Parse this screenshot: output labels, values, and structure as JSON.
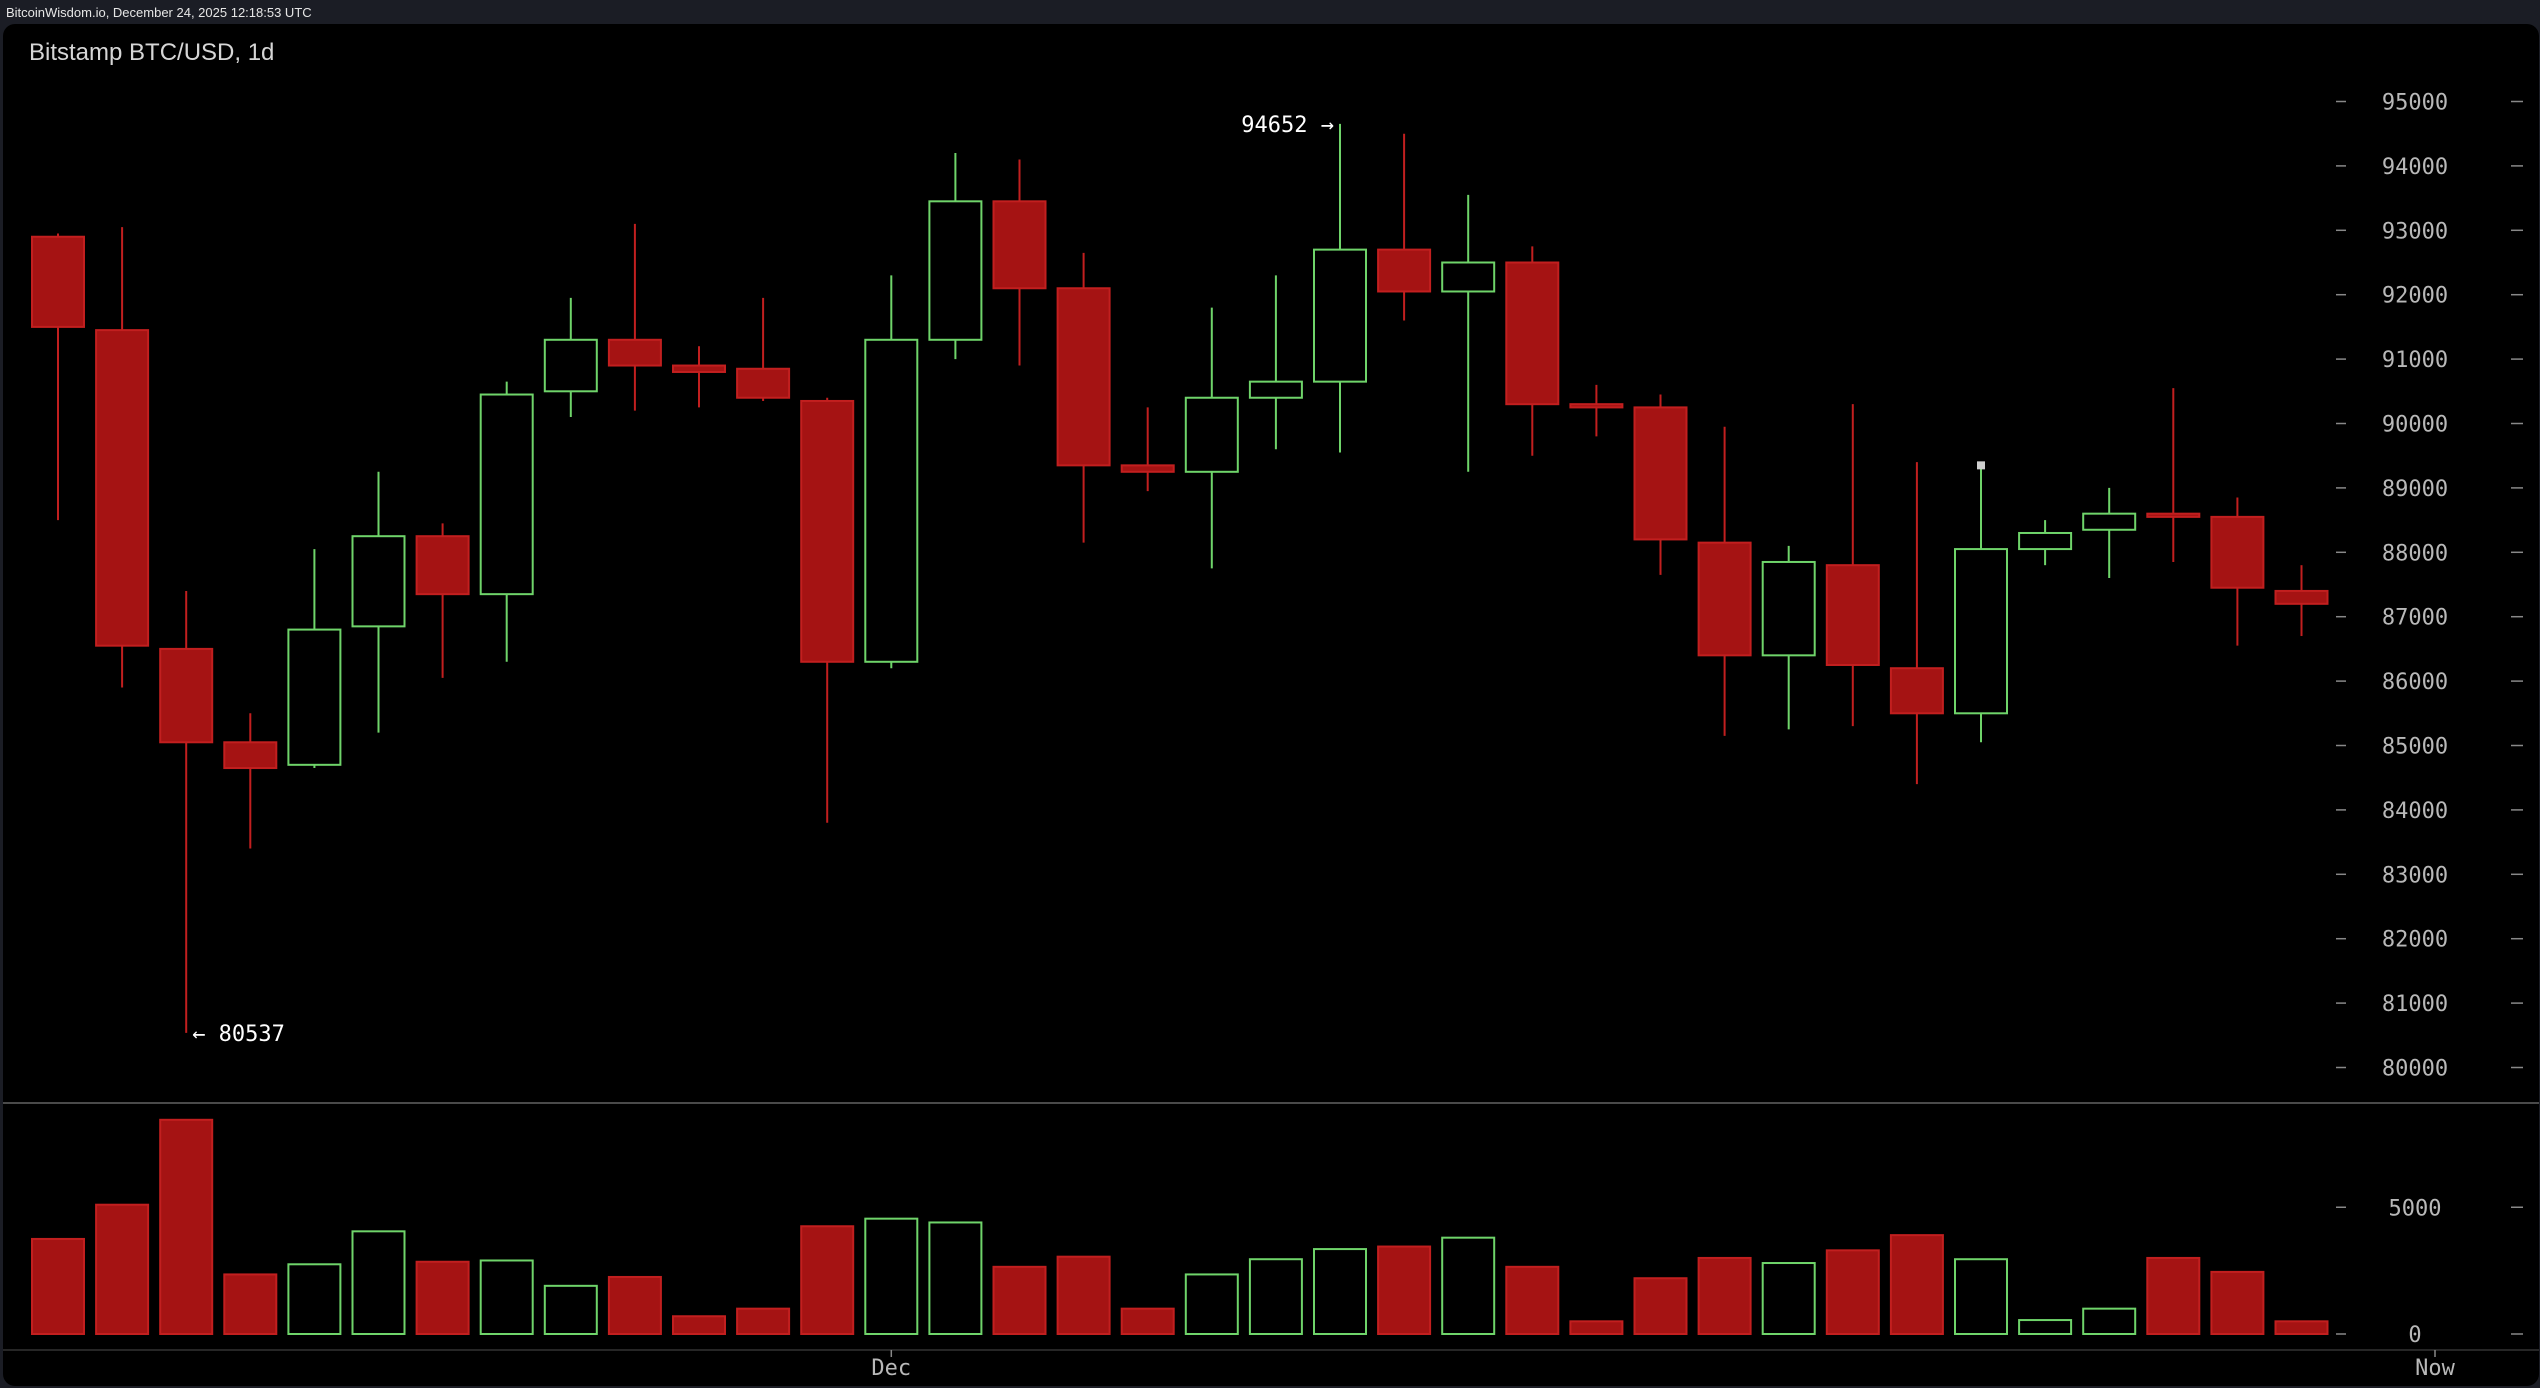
{
  "header": {
    "source_line": "BitcoinWisdom.io, December 24, 2025 12:18:53 UTC"
  },
  "chart": {
    "title": "Bitstamp BTC/USD, 1d"
  },
  "colors": {
    "up": "#6fd46a",
    "down": "#a51313",
    "down_border": "#c21f1f",
    "background": "#000000",
    "axis_text": "#b8b8b8"
  },
  "annotations": {
    "high_label": "94652 →",
    "low_label": "← 80537"
  },
  "chart_data": [
    {
      "type": "candlestick",
      "title": "Bitstamp BTC/USD, 1d",
      "y_ticks": [
        80000,
        81000,
        82000,
        83000,
        84000,
        85000,
        86000,
        87000,
        88000,
        89000,
        90000,
        91000,
        92000,
        93000,
        94000,
        95000
      ],
      "ylim": [
        79700,
        95400
      ],
      "x_ticks": [
        {
          "label": "Dec",
          "index": 13
        },
        {
          "label": "Now",
          "index": 37
        }
      ],
      "high_annotation": 94652,
      "low_annotation": 80537,
      "ohlc": [
        {
          "o": 92900,
          "h": 92950,
          "l": 88500,
          "c": 91500
        },
        {
          "o": 91450,
          "h": 93050,
          "l": 85900,
          "c": 86550
        },
        {
          "o": 86500,
          "h": 87400,
          "l": 80537,
          "c": 85050
        },
        {
          "o": 85050,
          "h": 85500,
          "l": 83400,
          "c": 84650
        },
        {
          "o": 84700,
          "h": 88050,
          "l": 84650,
          "c": 86800
        },
        {
          "o": 86850,
          "h": 89250,
          "l": 85200,
          "c": 88250
        },
        {
          "o": 88250,
          "h": 88450,
          "l": 86050,
          "c": 87350
        },
        {
          "o": 87350,
          "h": 90650,
          "l": 86300,
          "c": 90450
        },
        {
          "o": 90500,
          "h": 91950,
          "l": 90100,
          "c": 91300
        },
        {
          "o": 91300,
          "h": 93100,
          "l": 90200,
          "c": 90900
        },
        {
          "o": 90900,
          "h": 91200,
          "l": 90250,
          "c": 90800
        },
        {
          "o": 90850,
          "h": 91950,
          "l": 90350,
          "c": 90400
        },
        {
          "o": 90350,
          "h": 90400,
          "l": 83800,
          "c": 86300
        },
        {
          "o": 86300,
          "h": 92300,
          "l": 86200,
          "c": 91300
        },
        {
          "o": 91300,
          "h": 94200,
          "l": 91000,
          "c": 93450
        },
        {
          "o": 93450,
          "h": 94100,
          "l": 90900,
          "c": 92100
        },
        {
          "o": 92100,
          "h": 92650,
          "l": 88150,
          "c": 89350
        },
        {
          "o": 89350,
          "h": 90250,
          "l": 88950,
          "c": 89250
        },
        {
          "o": 89250,
          "h": 91800,
          "l": 87750,
          "c": 90400
        },
        {
          "o": 90400,
          "h": 92300,
          "l": 89600,
          "c": 90650
        },
        {
          "o": 90650,
          "h": 94652,
          "l": 89550,
          "c": 92700
        },
        {
          "o": 92700,
          "h": 94500,
          "l": 91600,
          "c": 92050
        },
        {
          "o": 92050,
          "h": 93550,
          "l": 89250,
          "c": 92500
        },
        {
          "o": 92500,
          "h": 92750,
          "l": 89500,
          "c": 90300
        },
        {
          "o": 90300,
          "h": 90600,
          "l": 89800,
          "c": 90250
        },
        {
          "o": 90250,
          "h": 90450,
          "l": 87650,
          "c": 88200
        },
        {
          "o": 88150,
          "h": 89950,
          "l": 85150,
          "c": 86400
        },
        {
          "o": 86400,
          "h": 88100,
          "l": 85250,
          "c": 87850
        },
        {
          "o": 87800,
          "h": 90300,
          "l": 85300,
          "c": 86250
        },
        {
          "o": 86200,
          "h": 89400,
          "l": 84400,
          "c": 85500
        },
        {
          "o": 85500,
          "h": 89350,
          "l": 85050,
          "c": 88050
        },
        {
          "o": 88050,
          "h": 88500,
          "l": 87800,
          "c": 88300
        },
        {
          "o": 88350,
          "h": 89000,
          "l": 87600,
          "c": 88600
        },
        {
          "o": 88600,
          "h": 90550,
          "l": 87850,
          "c": 88550
        },
        {
          "o": 88550,
          "h": 88850,
          "l": 86550,
          "c": 87450
        },
        {
          "o": 87400,
          "h": 87800,
          "l": 86700,
          "c": 87200
        }
      ],
      "volume": {
        "y_ticks": [
          0,
          5000
        ],
        "ylim": [
          0,
          8600
        ],
        "values": [
          3750,
          5100,
          8450,
          2350,
          2750,
          4050,
          2850,
          2900,
          1900,
          2250,
          700,
          1000,
          4250,
          4550,
          4400,
          2650,
          3050,
          1000,
          2350,
          2950,
          3350,
          3450,
          3800,
          2650,
          500,
          2200,
          3000,
          2800,
          3300,
          3900,
          2950,
          550,
          1000,
          3000,
          2450,
          500
        ]
      }
    }
  ]
}
